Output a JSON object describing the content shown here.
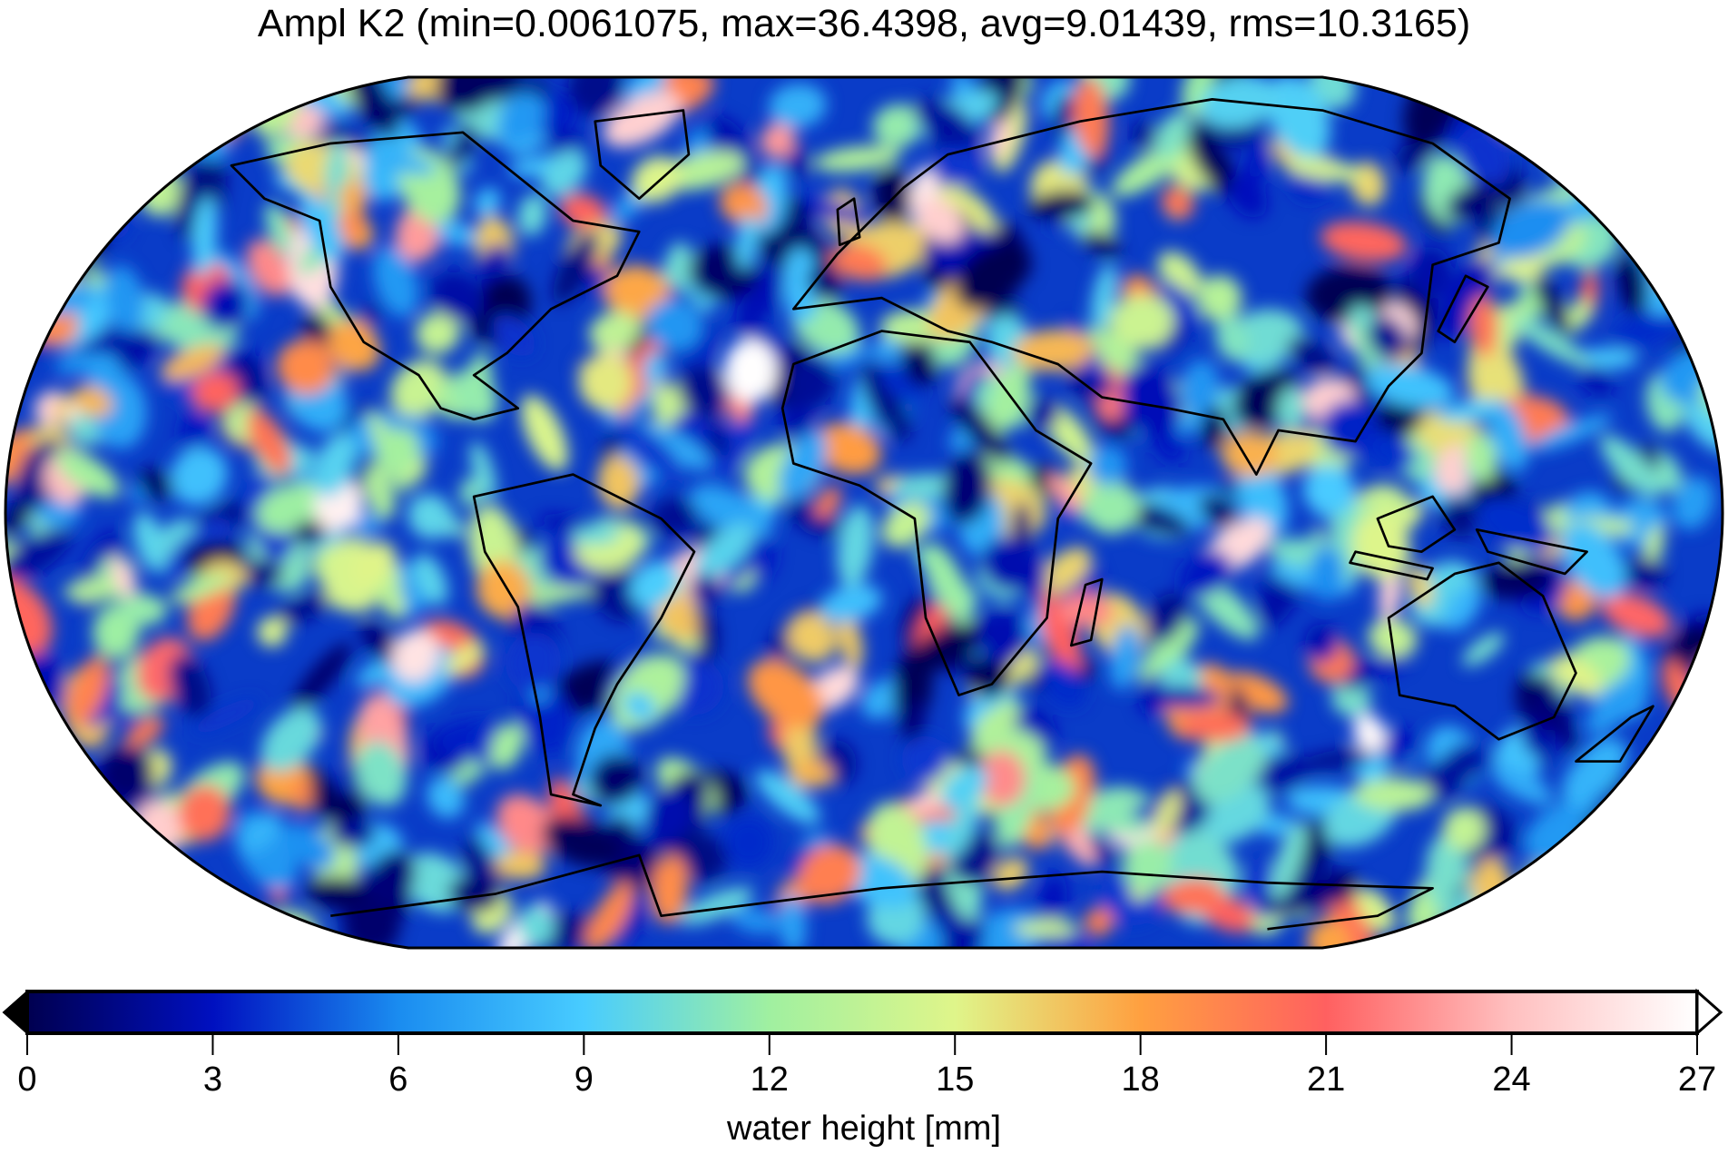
{
  "title": "Ampl K2 (min=0.0061075, max=36.4398, avg=9.01439, rms=10.3165)",
  "chart_data": {
    "type": "heatmap",
    "projection": "Robinson",
    "title": "Ampl K2 (min=0.0061075, max=36.4398, avg=9.01439, rms=10.3165)",
    "stats": {
      "min": 0.0061075,
      "max": 36.4398,
      "avg": 9.01439,
      "rms": 10.3165
    },
    "colorbar": {
      "label": "water height [mm]",
      "range": [
        0,
        27
      ],
      "ticks": [
        "0",
        "3",
        "6",
        "9",
        "12",
        "15",
        "18",
        "21",
        "24",
        "27"
      ],
      "extend": "both",
      "colors": [
        "#000050",
        "#0010c0",
        "#1a8cf0",
        "#48ccff",
        "#a0f0a0",
        "#dff58a",
        "#ffa040",
        "#ff6060",
        "#ffc0c0",
        "#ffffff"
      ]
    },
    "coastlines": true
  }
}
